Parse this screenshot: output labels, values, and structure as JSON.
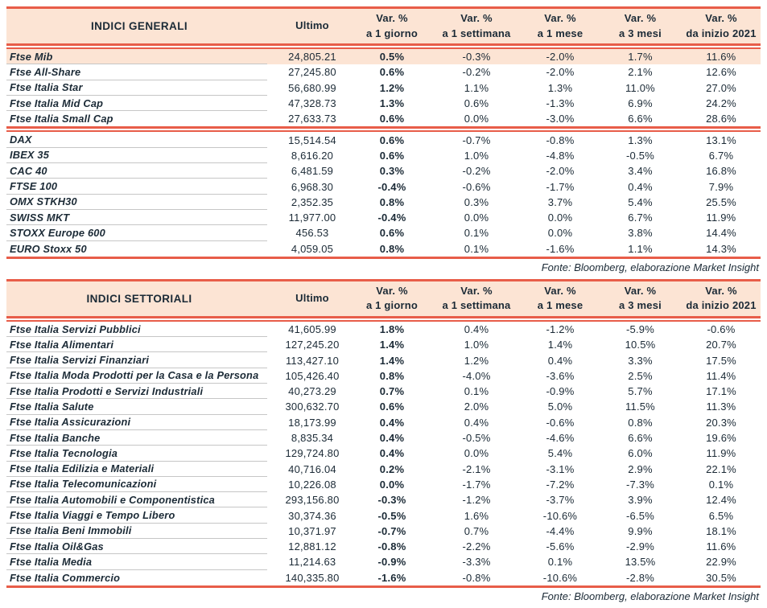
{
  "colors": {
    "accent_line": "#e85d49",
    "header_bg": "#fce4d4",
    "highlight_row_bg": "#fce4d4",
    "text": "#1b2a36",
    "row_divider": "#c6c6c6"
  },
  "columns": {
    "ultimo": "Ultimo",
    "var_label": "Var. %",
    "var_sublabels": [
      "a 1 giorno",
      "a 1 settimana",
      "a 1 mese",
      "a 3 mesi",
      "da inizio 2021"
    ]
  },
  "source_note": "Fonte: Bloomberg, elaborazione Market Insight",
  "tables": [
    {
      "title": "INDICI GENERALI",
      "groups": [
        {
          "highlight_first": true,
          "rows": [
            [
              "Ftse Mib",
              "24,805.21",
              "0.5%",
              "-0.3%",
              "-2.0%",
              "1.7%",
              "11.6%"
            ],
            [
              "Ftse All-Share",
              "27,245.80",
              "0.6%",
              "-0.2%",
              "-2.0%",
              "2.1%",
              "12.6%"
            ],
            [
              "Ftse Italia Star",
              "56,680.99",
              "1.2%",
              "1.1%",
              "1.3%",
              "11.0%",
              "27.0%"
            ],
            [
              "Ftse Italia Mid Cap",
              "47,328.73",
              "1.3%",
              "0.6%",
              "-1.3%",
              "6.9%",
              "24.2%"
            ],
            [
              "Ftse Italia Small Cap",
              "27,633.73",
              "0.6%",
              "0.0%",
              "-3.0%",
              "6.6%",
              "28.6%"
            ]
          ]
        },
        {
          "highlight_first": false,
          "rows": [
            [
              "DAX",
              "15,514.54",
              "0.6%",
              "-0.7%",
              "-0.8%",
              "1.3%",
              "13.1%"
            ],
            [
              "IBEX 35",
              "8,616.20",
              "0.6%",
              "1.0%",
              "-4.8%",
              "-0.5%",
              "6.7%"
            ],
            [
              "CAC 40",
              "6,481.59",
              "0.3%",
              "-0.2%",
              "-2.0%",
              "3.4%",
              "16.8%"
            ],
            [
              "FTSE 100",
              "6,968.30",
              "-0.4%",
              "-0.6%",
              "-1.7%",
              "0.4%",
              "7.9%"
            ],
            [
              "OMX STKH30",
              "2,352.35",
              "0.8%",
              "0.3%",
              "3.7%",
              "5.4%",
              "25.5%"
            ],
            [
              "SWISS MKT",
              "11,977.00",
              "-0.4%",
              "0.0%",
              "0.0%",
              "6.7%",
              "11.9%"
            ],
            [
              "STOXX Europe 600",
              "456.53",
              "0.6%",
              "0.1%",
              "0.0%",
              "3.8%",
              "14.4%"
            ],
            [
              "EURO Stoxx 50",
              "4,059.05",
              "0.8%",
              "0.1%",
              "-1.6%",
              "1.1%",
              "14.3%"
            ]
          ]
        }
      ]
    },
    {
      "title": "INDICI SETTORIALI",
      "groups": [
        {
          "highlight_first": false,
          "rows": [
            [
              "Ftse Italia Servizi Pubblici",
              "41,605.99",
              "1.8%",
              "0.4%",
              "-1.2%",
              "-5.9%",
              "-0.6%"
            ],
            [
              "Ftse Italia Alimentari",
              "127,245.20",
              "1.4%",
              "1.0%",
              "1.4%",
              "10.5%",
              "20.7%"
            ],
            [
              "Ftse Italia Servizi Finanziari",
              "113,427.10",
              "1.4%",
              "1.2%",
              "0.4%",
              "3.3%",
              "17.5%"
            ],
            [
              "Ftse Italia Moda Prodotti per la Casa e la Persona",
              "105,426.40",
              "0.8%",
              "-4.0%",
              "-3.6%",
              "2.5%",
              "11.4%"
            ],
            [
              "Ftse Italia Prodotti e Servizi Industriali",
              "40,273.29",
              "0.7%",
              "0.1%",
              "-0.9%",
              "5.7%",
              "17.1%"
            ],
            [
              "Ftse Italia Salute",
              "300,632.70",
              "0.6%",
              "2.0%",
              "5.0%",
              "11.5%",
              "11.3%"
            ],
            [
              "Ftse Italia Assicurazioni",
              "18,173.99",
              "0.4%",
              "0.4%",
              "-0.6%",
              "0.8%",
              "20.3%"
            ],
            [
              "Ftse Italia Banche",
              "8,835.34",
              "0.4%",
              "-0.5%",
              "-4.6%",
              "6.6%",
              "19.6%"
            ],
            [
              "Ftse Italia Tecnologia",
              "129,724.80",
              "0.4%",
              "0.0%",
              "5.4%",
              "6.0%",
              "11.9%"
            ],
            [
              "Ftse Italia Edilizia e Materiali",
              "40,716.04",
              "0.2%",
              "-2.1%",
              "-3.1%",
              "2.9%",
              "22.1%"
            ],
            [
              "Ftse Italia Telecomunicazioni",
              "10,226.08",
              "0.0%",
              "-1.7%",
              "-7.2%",
              "-7.3%",
              "0.1%"
            ],
            [
              "Ftse Italia Automobili e Componentistica",
              "293,156.80",
              "-0.3%",
              "-1.2%",
              "-3.7%",
              "3.9%",
              "12.4%"
            ],
            [
              "Ftse Italia Viaggi e Tempo Libero",
              "30,374.36",
              "-0.5%",
              "1.6%",
              "-10.6%",
              "-6.5%",
              "6.5%"
            ],
            [
              "Ftse Italia Beni Immobili",
              "10,371.97",
              "-0.7%",
              "0.7%",
              "-4.4%",
              "9.9%",
              "18.1%"
            ],
            [
              "Ftse Italia Oil&Gas",
              "12,881.12",
              "-0.8%",
              "-2.2%",
              "-5.6%",
              "-2.9%",
              "11.6%"
            ],
            [
              "Ftse Italia Media",
              "11,214.63",
              "-0.9%",
              "-3.3%",
              "0.1%",
              "13.5%",
              "22.9%"
            ],
            [
              "Ftse Italia Commercio",
              "140,335.80",
              "-1.6%",
              "-0.8%",
              "-10.6%",
              "-2.8%",
              "30.5%"
            ]
          ]
        }
      ]
    }
  ]
}
